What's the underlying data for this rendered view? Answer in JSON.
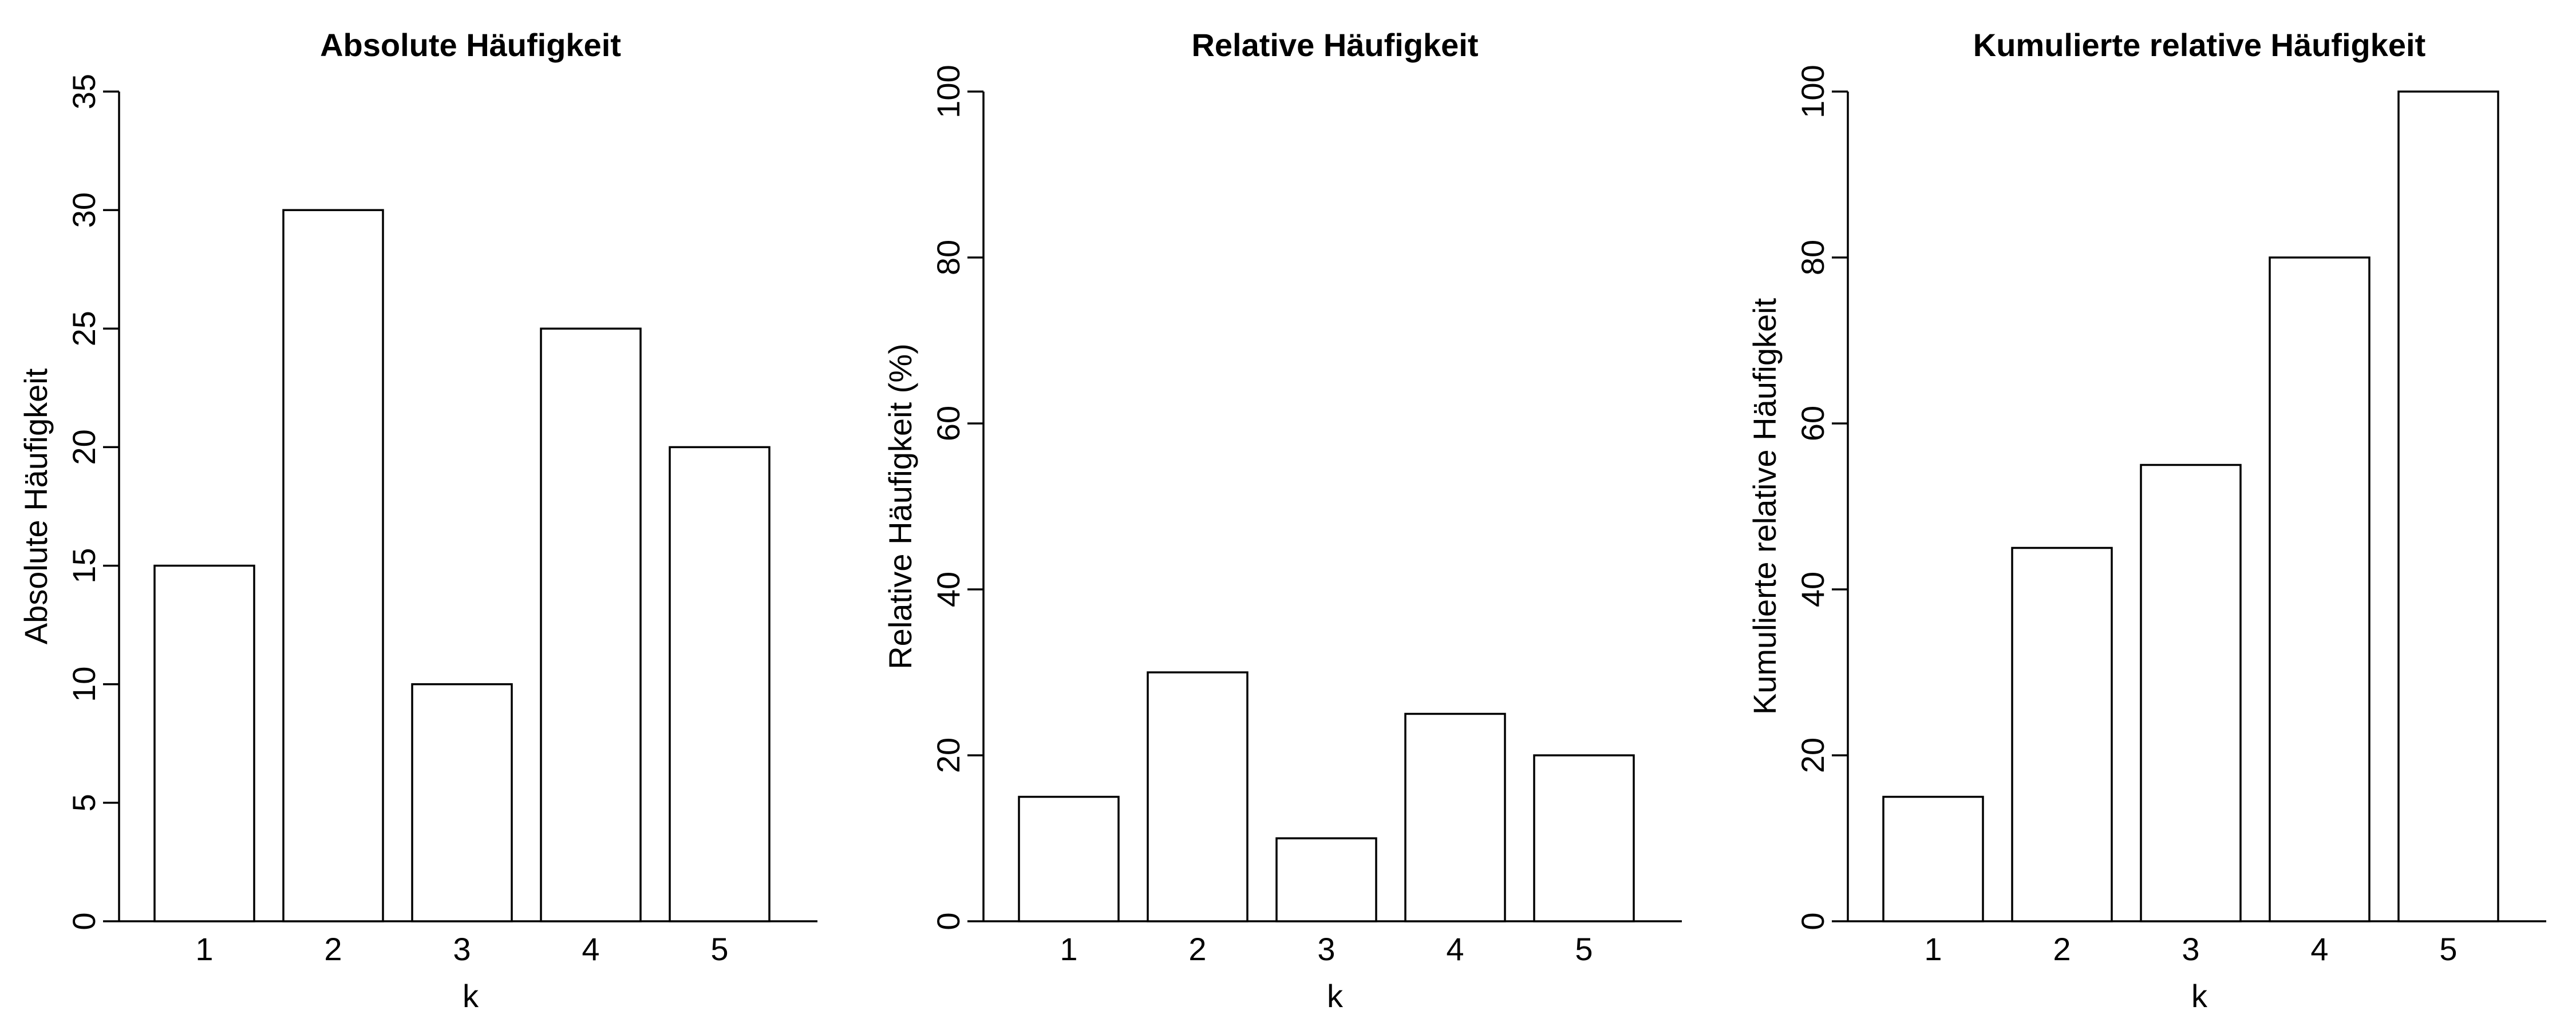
{
  "chart_data": [
    {
      "type": "bar",
      "title": "Absolute Häufigkeit",
      "xlabel": "k",
      "ylabel": "Absolute Häufigkeit",
      "categories": [
        "1",
        "2",
        "3",
        "4",
        "5"
      ],
      "values": [
        15,
        30,
        10,
        25,
        20
      ],
      "ylim": [
        0,
        35
      ],
      "yticks": [
        0,
        5,
        10,
        15,
        20,
        25,
        30,
        35
      ],
      "grid": false,
      "bar_fill": "#ffffff",
      "bar_stroke": "#000000"
    },
    {
      "type": "bar",
      "title": "Relative Häufigkeit",
      "xlabel": "k",
      "ylabel": "Relative Häufigkeit (%)",
      "categories": [
        "1",
        "2",
        "3",
        "4",
        "5"
      ],
      "values": [
        15,
        30,
        10,
        25,
        20
      ],
      "ylim": [
        0,
        100
      ],
      "yticks": [
        0,
        20,
        40,
        60,
        80,
        100
      ],
      "grid": false,
      "bar_fill": "#ffffff",
      "bar_stroke": "#000000"
    },
    {
      "type": "bar",
      "title": "Kumulierte relative Häufigkeit",
      "xlabel": "k",
      "ylabel": "Kumulierte relative Häufigkeit",
      "categories": [
        "1",
        "2",
        "3",
        "4",
        "5"
      ],
      "values": [
        15,
        45,
        55,
        80,
        100
      ],
      "ylim": [
        0,
        100
      ],
      "yticks": [
        0,
        20,
        40,
        60,
        80,
        100
      ],
      "grid": false,
      "bar_fill": "#ffffff",
      "bar_stroke": "#000000"
    }
  ]
}
